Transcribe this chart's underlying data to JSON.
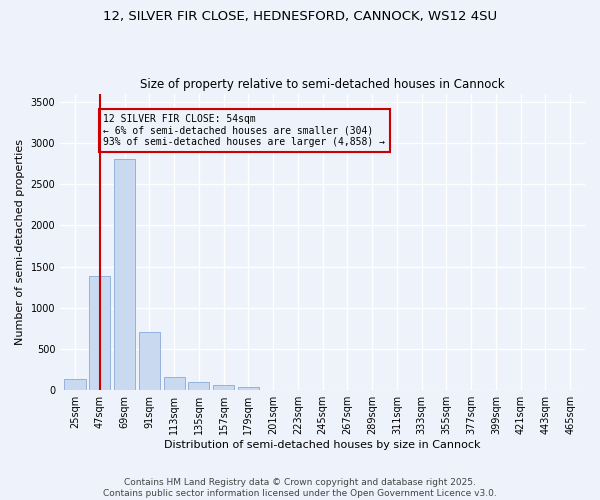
{
  "title1": "12, SILVER FIR CLOSE, HEDNESFORD, CANNOCK, WS12 4SU",
  "title2": "Size of property relative to semi-detached houses in Cannock",
  "xlabel": "Distribution of semi-detached houses by size in Cannock",
  "ylabel": "Number of semi-detached properties",
  "annotation_title": "12 SILVER FIR CLOSE: 54sqm",
  "annotation_line1": "← 6% of semi-detached houses are smaller (304)",
  "annotation_line2": "93% of semi-detached houses are larger (4,858) →",
  "footer1": "Contains HM Land Registry data © Crown copyright and database right 2025.",
  "footer2": "Contains public sector information licensed under the Open Government Licence v3.0.",
  "bar_values": [
    130,
    1380,
    2800,
    710,
    155,
    100,
    60,
    45,
    0,
    0,
    0,
    0,
    0,
    0,
    0,
    0,
    0,
    0,
    0,
    0,
    0
  ],
  "categories": [
    "25sqm",
    "47sqm",
    "69sqm",
    "91sqm",
    "113sqm",
    "135sqm",
    "157sqm",
    "179sqm",
    "201sqm",
    "223sqm",
    "245sqm",
    "267sqm",
    "289sqm",
    "311sqm",
    "333sqm",
    "355sqm",
    "377sqm",
    "399sqm",
    "421sqm",
    "443sqm",
    "465sqm"
  ],
  "bar_color": "#c8d9f0",
  "bar_edge_color": "#88aad8",
  "vline_x": 1,
  "vline_color": "#cc0000",
  "annotation_box_color": "#cc0000",
  "ylim": [
    0,
    3600
  ],
  "yticks": [
    0,
    500,
    1000,
    1500,
    2000,
    2500,
    3000,
    3500
  ],
  "bg_color": "#eef2fa",
  "grid_color": "#ffffff",
  "title_fontsize": 9.5,
  "subtitle_fontsize": 8.5,
  "axis_label_fontsize": 8,
  "tick_fontsize": 7,
  "footer_fontsize": 6.5,
  "annotation_fontsize": 7
}
